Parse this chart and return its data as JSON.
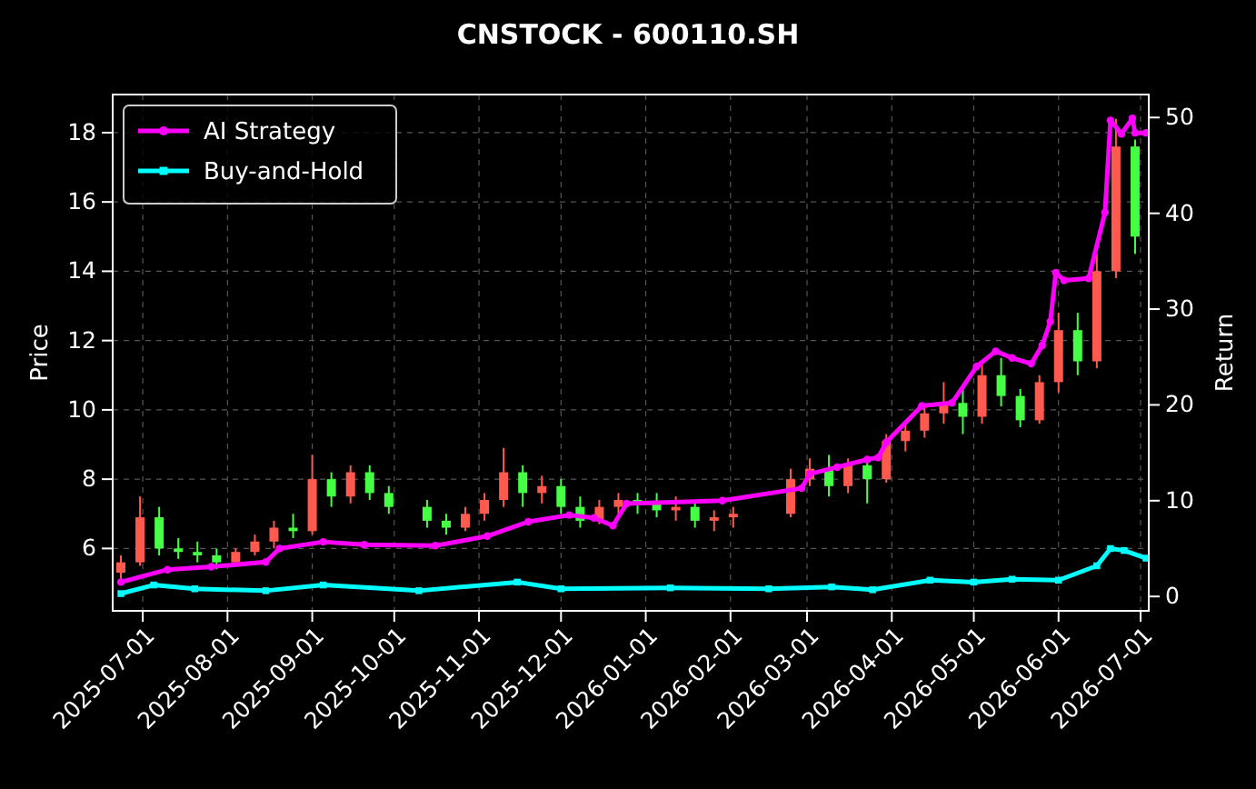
{
  "chart_data": {
    "type": "candlestick",
    "title": "CNSTOCK - 600110.SH",
    "ylabel": "Price",
    "y2label": "Return",
    "x": [
      "2025-06-23",
      "2025-06-30",
      "2025-07-07",
      "2025-07-14",
      "2025-07-21",
      "2025-07-28",
      "2025-08-04",
      "2025-08-11",
      "2025-08-18",
      "2025-08-25",
      "2025-09-01",
      "2025-09-08",
      "2025-09-15",
      "2025-09-22",
      "2025-09-29",
      "2025-10-13",
      "2025-10-20",
      "2025-10-27",
      "2025-11-03",
      "2025-11-10",
      "2025-11-17",
      "2025-11-24",
      "2025-12-01",
      "2025-12-08",
      "2025-12-15",
      "2025-12-22",
      "2025-12-29",
      "2026-01-05",
      "2026-01-12",
      "2026-01-19",
      "2026-01-26",
      "2026-02-02",
      "2026-02-23",
      "2026-03-02",
      "2026-03-09",
      "2026-03-16",
      "2026-03-23",
      "2026-03-30",
      "2026-04-06",
      "2026-04-13",
      "2026-04-20",
      "2026-04-27",
      "2026-05-04",
      "2026-05-11",
      "2026-05-18",
      "2026-05-25",
      "2026-06-01",
      "2026-06-08",
      "2026-06-15",
      "2026-06-22",
      "2026-06-29"
    ],
    "ohlc": [
      [
        5.3,
        5.8,
        5.1,
        5.6
      ],
      [
        5.6,
        7.5,
        5.5,
        6.9
      ],
      [
        6.9,
        7.2,
        5.8,
        6.0
      ],
      [
        6.0,
        6.3,
        5.7,
        5.9
      ],
      [
        5.9,
        6.2,
        5.6,
        5.8
      ],
      [
        5.8,
        6.0,
        5.4,
        5.6
      ],
      [
        5.6,
        6.0,
        5.5,
        5.9
      ],
      [
        5.9,
        6.4,
        5.8,
        6.2
      ],
      [
        6.2,
        6.8,
        6.0,
        6.6
      ],
      [
        6.6,
        7.0,
        6.3,
        6.5
      ],
      [
        6.5,
        8.7,
        6.4,
        8.0
      ],
      [
        8.0,
        8.2,
        7.2,
        7.5
      ],
      [
        7.5,
        8.4,
        7.3,
        8.2
      ],
      [
        8.2,
        8.4,
        7.4,
        7.6
      ],
      [
        7.6,
        7.8,
        7.0,
        7.2
      ],
      [
        7.2,
        7.4,
        6.6,
        6.8
      ],
      [
        6.8,
        7.0,
        6.4,
        6.6
      ],
      [
        6.6,
        7.2,
        6.5,
        7.0
      ],
      [
        7.0,
        7.6,
        6.8,
        7.4
      ],
      [
        7.4,
        8.9,
        7.2,
        8.2
      ],
      [
        8.2,
        8.4,
        7.2,
        7.6
      ],
      [
        7.6,
        8.1,
        7.3,
        7.8
      ],
      [
        7.8,
        8.0,
        7.0,
        7.2
      ],
      [
        7.2,
        7.5,
        6.6,
        6.8
      ],
      [
        6.8,
        7.4,
        6.7,
        7.2
      ],
      [
        7.2,
        7.6,
        7.0,
        7.4
      ],
      [
        7.4,
        7.6,
        7.0,
        7.3
      ],
      [
        7.3,
        7.6,
        6.9,
        7.1
      ],
      [
        7.1,
        7.5,
        6.8,
        7.2
      ],
      [
        7.2,
        7.3,
        6.6,
        6.8
      ],
      [
        6.8,
        7.1,
        6.5,
        6.9
      ],
      [
        6.9,
        7.2,
        6.6,
        7.0
      ],
      [
        7.0,
        8.3,
        6.9,
        8.0
      ],
      [
        8.0,
        8.6,
        7.8,
        8.3
      ],
      [
        8.3,
        8.7,
        7.5,
        7.8
      ],
      [
        7.8,
        8.6,
        7.6,
        8.4
      ],
      [
        8.4,
        8.6,
        7.3,
        8.0
      ],
      [
        8.0,
        9.3,
        7.9,
        9.1
      ],
      [
        9.1,
        9.6,
        8.8,
        9.4
      ],
      [
        9.4,
        10.1,
        9.2,
        9.9
      ],
      [
        9.9,
        10.8,
        9.6,
        10.2
      ],
      [
        10.2,
        10.6,
        9.3,
        9.8
      ],
      [
        9.8,
        11.3,
        9.6,
        11.0
      ],
      [
        11.0,
        11.5,
        10.1,
        10.4
      ],
      [
        10.4,
        10.6,
        9.5,
        9.7
      ],
      [
        9.7,
        11.0,
        9.6,
        10.8
      ],
      [
        10.8,
        12.8,
        10.5,
        12.3
      ],
      [
        12.3,
        12.8,
        11.0,
        11.4
      ],
      [
        11.4,
        14.5,
        11.2,
        14.0
      ],
      [
        14.0,
        18.4,
        13.8,
        17.6
      ],
      [
        17.6,
        17.8,
        14.5,
        15.0
      ]
    ],
    "colors": [
      "#ff5a4d",
      "#ff5a4d",
      "#44ff44",
      "#44ff44",
      "#44ff44",
      "#44ff44",
      "#ff5a4d",
      "#ff5a4d",
      "#ff5a4d",
      "#44ff44",
      "#ff5a4d",
      "#44ff44",
      "#ff5a4d",
      "#44ff44",
      "#44ff44",
      "#44ff44",
      "#44ff44",
      "#ff5a4d",
      "#ff5a4d",
      "#ff5a4d",
      "#44ff44",
      "#ff5a4d",
      "#44ff44",
      "#44ff44",
      "#ff5a4d",
      "#ff5a4d",
      "#44ff44",
      "#44ff44",
      "#ff5a4d",
      "#44ff44",
      "#ff5a4d",
      "#ff5a4d",
      "#ff5a4d",
      "#ff5a4d",
      "#44ff44",
      "#ff5a4d",
      "#44ff44",
      "#ff5a4d",
      "#ff5a4d",
      "#ff5a4d",
      "#ff5a4d",
      "#44ff44",
      "#ff5a4d",
      "#44ff44",
      "#44ff44",
      "#ff5a4d",
      "#ff5a4d",
      "#44ff44",
      "#ff5a4d",
      "#ff5a4d",
      "#44ff44"
    ],
    "series": [
      {
        "name": "AI Strategy",
        "type": "line",
        "axis": "y2",
        "color": "#ff00ff",
        "marker": "circle",
        "x": [
          "2025-06-23",
          "2025-07-10",
          "2025-07-26",
          "2025-08-15",
          "2025-08-20",
          "2025-09-05",
          "2025-09-20",
          "2025-10-16",
          "2025-11-04",
          "2025-11-19",
          "2025-12-04",
          "2025-12-13",
          "2025-12-20",
          "2025-12-25",
          "2026-01-29",
          "2026-02-27",
          "2026-03-02",
          "2026-03-12",
          "2026-03-23",
          "2026-03-27",
          "2026-03-30",
          "2026-04-12",
          "2026-04-23",
          "2026-05-02",
          "2026-05-09",
          "2026-05-15",
          "2026-05-22",
          "2026-05-26",
          "2026-05-29",
          "2026-05-31",
          "2026-06-03",
          "2026-06-12",
          "2026-06-18",
          "2026-06-20",
          "2026-06-24",
          "2026-06-28",
          "2026-06-29",
          "2026-07-03"
        ],
        "values": [
          1.5,
          2.8,
          3.1,
          3.6,
          5.0,
          5.7,
          5.4,
          5.3,
          6.3,
          7.8,
          8.5,
          8.2,
          7.4,
          9.7,
          10.0,
          11.3,
          12.8,
          13.5,
          14.3,
          14.5,
          16.1,
          19.9,
          20.2,
          24.0,
          25.6,
          24.9,
          24.3,
          26.2,
          28.7,
          33.8,
          33.0,
          33.2,
          40.1,
          49.7,
          48.3,
          49.9,
          48.4,
          48.4
        ]
      },
      {
        "name": "Buy-and-Hold",
        "type": "line",
        "axis": "y2",
        "color": "#00ffff",
        "marker": "square",
        "x": [
          "2025-06-23",
          "2025-07-05",
          "2025-07-20",
          "2025-08-15",
          "2025-09-05",
          "2025-10-10",
          "2025-11-15",
          "2025-12-01",
          "2026-01-10",
          "2026-02-15",
          "2026-03-10",
          "2026-03-25",
          "2026-04-15",
          "2026-05-01",
          "2026-05-15",
          "2026-06-01",
          "2026-06-15",
          "2026-06-20",
          "2026-06-25",
          "2026-07-03"
        ],
        "values": [
          0.3,
          1.2,
          0.8,
          0.6,
          1.2,
          0.6,
          1.5,
          0.8,
          0.9,
          0.8,
          1.0,
          0.7,
          1.7,
          1.5,
          1.8,
          1.7,
          3.2,
          5.0,
          4.8,
          4.0
        ]
      }
    ],
    "xlim": [
      "2025-06-20",
      "2026-07-04"
    ],
    "xticks": [
      "2025-07-01",
      "2025-08-01",
      "2025-09-01",
      "2025-10-01",
      "2025-11-01",
      "2025-12-01",
      "2026-01-01",
      "2026-02-01",
      "2026-03-01",
      "2026-04-01",
      "2026-05-01",
      "2026-06-01",
      "2026-07-01"
    ],
    "ylim": [
      4.2,
      19.1
    ],
    "yticks": [
      6,
      8,
      10,
      12,
      14,
      16,
      18
    ],
    "y2lim": [
      -1.5,
      52.4
    ],
    "y2ticks": [
      0,
      10,
      20,
      30,
      40,
      50
    ],
    "grid": true,
    "legend": "top left"
  }
}
